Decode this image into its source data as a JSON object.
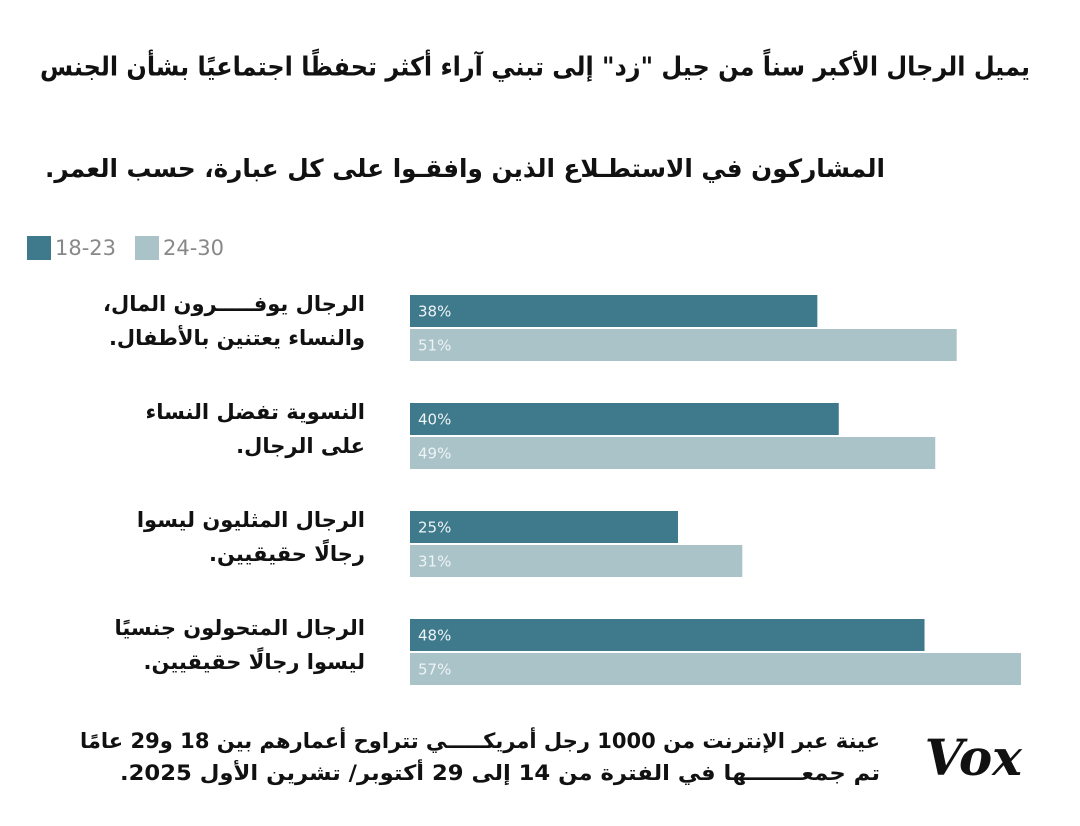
{
  "chart_data": {
    "type": "bar",
    "orientation": "horizontal",
    "title": "يميل الرجال الأكبر سناً من جيل \"زد\" إلى تبني آراء أكثر تحفظًا اجتماعيًا بشأن الجنس",
    "subtitle": "المشاركون في الاستطـلاع الذين وافقـوا على كل عبارة، حسب العمر.",
    "categories": [
      [
        "الرجال يوفـــــرون المال،",
        "والنساء يعتنين بالأطفال."
      ],
      [
        "النسوية تفضل النساء",
        "على الرجال."
      ],
      [
        "الرجال المثليون ليسوا",
        "رجالًا حقيقيين."
      ],
      [
        "الرجال المتحولون جنسيًا",
        "ليسوا رجالًا حقيقيين."
      ]
    ],
    "series": [
      {
        "name": "18-23",
        "color": "#3e7a8c",
        "values": [
          38,
          40,
          25,
          48
        ],
        "value_labels": [
          "38%",
          "40%",
          "25%",
          "48%"
        ]
      },
      {
        "name": "24-30",
        "color": "#a9c3c9",
        "values": [
          51,
          49,
          31,
          57
        ],
        "value_labels": [
          "51%",
          "49%",
          "31%",
          "57%"
        ]
      }
    ],
    "legend": "top-left",
    "grid": false,
    "footnote": [
      "عينة عبر الإنترنت من 1000 رجل أمريكـــــي تتراوح أعمارهم بين 18 و29 عامًا",
      "تم جمعـــــــها في الفترة من 14 إلى 29 أكتوبر/ تشرين الأول 2025."
    ],
    "logo": "Vox"
  }
}
